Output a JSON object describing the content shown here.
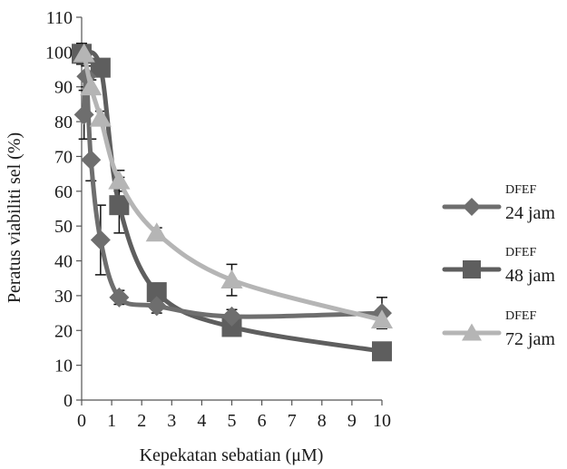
{
  "chart_data": {
    "type": "line",
    "title": "",
    "xlabel": "Kepekatan sebatian (μM)",
    "ylabel": "Peratus viabiliti sel (%)",
    "xlim": [
      0,
      10
    ],
    "ylim": [
      0,
      110
    ],
    "x_ticks": [
      0,
      1,
      2,
      3,
      4,
      5,
      6,
      7,
      8,
      9,
      10
    ],
    "y_ticks": [
      0,
      10,
      20,
      30,
      40,
      50,
      60,
      70,
      80,
      90,
      100,
      110
    ],
    "grid": false,
    "legend_position": "right",
    "series": [
      {
        "name_top": "DFEF",
        "name_bottom": "24 jam",
        "marker": "diamond",
        "color": "#6e6e6e",
        "x": [
          0.08,
          0.16,
          0.31,
          0.63,
          1.25,
          2.5,
          5,
          10
        ],
        "y": [
          82,
          93,
          69,
          46,
          29.5,
          27,
          24,
          25
        ],
        "err": [
          7,
          3,
          6,
          10,
          2,
          2,
          2,
          4.5
        ]
      },
      {
        "name_top": "DFEF",
        "name_bottom": "48 jam",
        "marker": "square",
        "color": "#5e5e5e",
        "x": [
          0,
          0.63,
          1.25,
          2.5,
          5,
          10
        ],
        "y": [
          99.5,
          95.5,
          56,
          31,
          21,
          14
        ],
        "err": [
          3,
          2,
          8,
          2,
          2,
          1.5
        ]
      },
      {
        "name_top": "DFEF",
        "name_bottom": "72 jam",
        "marker": "triangle",
        "color": "#b5b5b5",
        "x": [
          0.08,
          0.31,
          0.63,
          1.25,
          2.5,
          5,
          10
        ],
        "y": [
          99.5,
          90,
          81,
          63,
          48,
          34.5,
          23
        ],
        "err": [
          2,
          2,
          2,
          3,
          1.5,
          4.5,
          2
        ]
      }
    ]
  }
}
